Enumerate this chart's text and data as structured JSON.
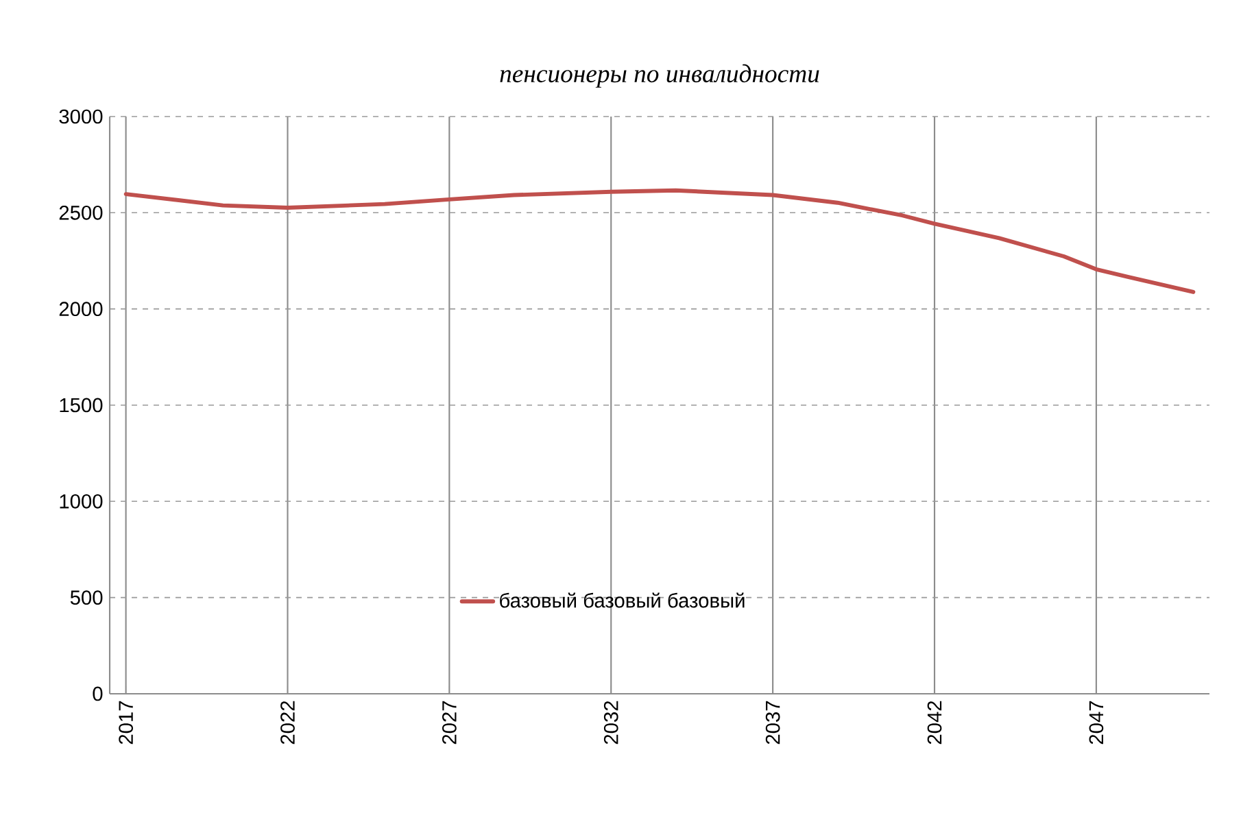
{
  "chart_data": {
    "type": "line",
    "title": "пенсионеры по инвалидности",
    "x": [
      2017,
      2020,
      2022,
      2025,
      2027,
      2029,
      2032,
      2034,
      2037,
      2039,
      2041,
      2042,
      2044,
      2046,
      2047,
      2048,
      2050
    ],
    "series": [
      {
        "name": "базовый базовый базовый",
        "color": "#c0504d",
        "values": [
          2597,
          2538,
          2526,
          2545,
          2569,
          2592,
          2609,
          2616,
          2592,
          2552,
          2486,
          2443,
          2368,
          2273,
          2206,
          2166,
          2088
        ]
      }
    ],
    "xlim": [
      2016.5,
      2050.5
    ],
    "xticks": [
      2017,
      2022,
      2027,
      2032,
      2037,
      2042,
      2047
    ],
    "ylim": [
      0,
      3000
    ],
    "yticks": [
      0,
      500,
      1000,
      1500,
      2000,
      2500,
      3000
    ],
    "grid": true,
    "legend": "bottom",
    "marker": "none",
    "line_style": "solid"
  }
}
